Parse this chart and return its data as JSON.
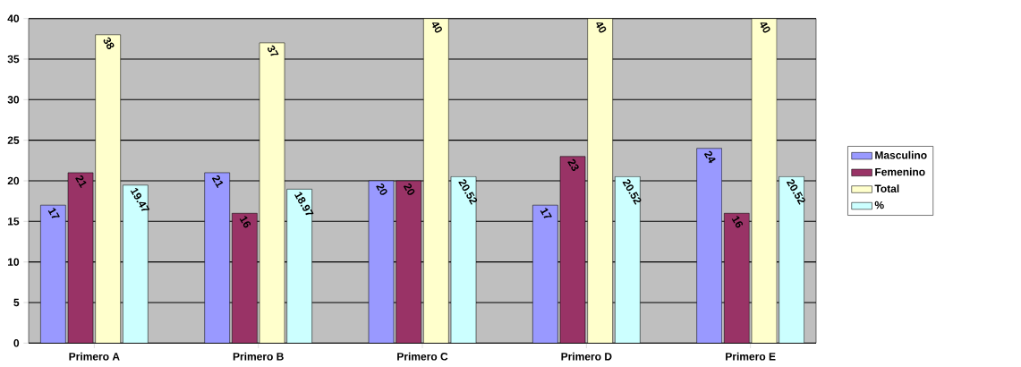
{
  "chart_data": {
    "type": "bar",
    "categories": [
      "Primero A",
      "Primero B",
      "Primero C",
      "Primero D",
      "Primero E"
    ],
    "series": [
      {
        "name": "Masculino",
        "color": "#9999ff",
        "values": [
          17,
          21,
          20,
          17,
          24
        ]
      },
      {
        "name": "Femenino",
        "color": "#993366",
        "values": [
          21,
          16,
          20,
          23,
          16
        ]
      },
      {
        "name": "Total",
        "color": "#ffffcc",
        "values": [
          38,
          37,
          40,
          40,
          40
        ]
      },
      {
        "name": "%",
        "color": "#ccffff",
        "values": [
          19.47,
          18.97,
          20.52,
          20.52,
          20.52
        ]
      }
    ],
    "ylim": [
      0,
      40
    ],
    "yticks": [
      0,
      5,
      10,
      15,
      20,
      25,
      30,
      35,
      40
    ],
    "grid": "y",
    "legend": "right",
    "data_labels": true
  }
}
